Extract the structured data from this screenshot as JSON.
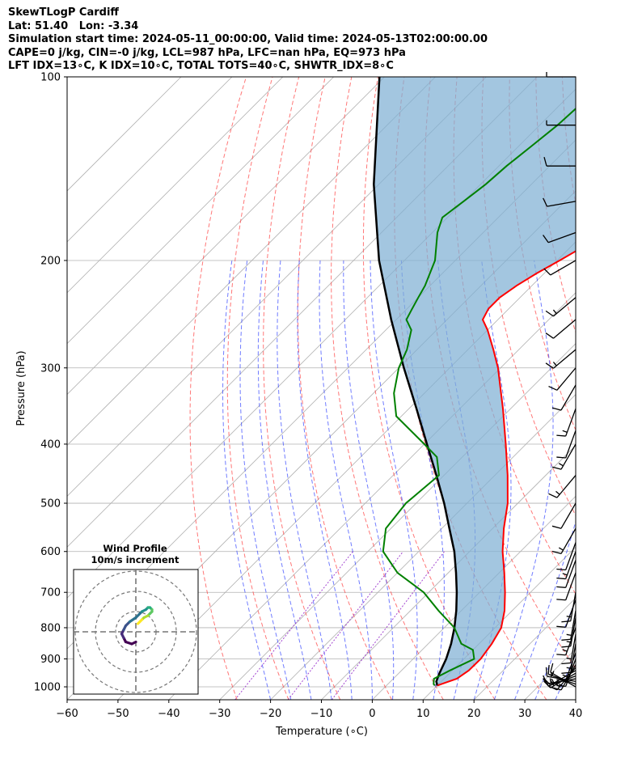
{
  "title": {
    "line1": "SkewTLogP Cardiff",
    "line2": "Lat: 51.40   Lon: -3.34",
    "line3": "Simulation start time: 2024-05-11_00:00:00, Valid time: 2024-05-13T02:00:00.00",
    "line4": "CAPE=0 j/kg, CIN=-0 j/kg, LCL=987 hPa, LFC=nan hPa, EQ=973 hPa",
    "line5": "LFT IDX=13$^\\circ$C, K IDX=10$^\\circ$C, TOTAL TOTS=40$^\\circ$C, SHWTR_IDX=8$^\\circ$C",
    "line5_display": "LFT IDX=13∘C, K IDX=10∘C, TOTAL TOTS=40∘C, SHWTR_IDX=8∘C"
  },
  "chart_data": {
    "type": "line",
    "subtype": "skew-t log-p",
    "xlabel": "Temperature (∘C)",
    "ylabel": "Pressure (hPa)",
    "xlim": [
      -60,
      40
    ],
    "ylim": [
      1050,
      100
    ],
    "y_scale": "log",
    "x_ticks": [
      "−60",
      "−50",
      "−40",
      "−30",
      "−20",
      "−10",
      "0",
      "10",
      "20",
      "30",
      "40"
    ],
    "y_ticks": [
      "100",
      "200",
      "300",
      "400",
      "500",
      "600",
      "700",
      "800",
      "900",
      "1000"
    ],
    "grid": true,
    "colors": {
      "temperature": "#ff0000",
      "dewpoint": "#008000",
      "parcel": "#000000",
      "cape_fill": "#7fb0d4",
      "dry_adiabats": "#ff4a4a",
      "moist_adiabats": "#3344ff",
      "mixing_ratio": "#9933cc",
      "isotherms": "#b0b0b0",
      "barbs": "#000000"
    },
    "series": [
      {
        "key": "temperature",
        "pressure": [
          995,
          990,
          970,
          940,
          900,
          850,
          800,
          750,
          700,
          650,
          600,
          550,
          500,
          450,
          400,
          350,
          300,
          280,
          260,
          250,
          240,
          230,
          220,
          210,
          200,
          180,
          160,
          150,
          140,
          130,
          120,
          110,
          100
        ],
        "values": [
          10,
          10.5,
          12.5,
          13.2,
          13.3,
          12.5,
          11.2,
          8.5,
          5.0,
          1.0,
          -3.5,
          -7.8,
          -12.0,
          -17.5,
          -24.0,
          -31.5,
          -40.5,
          -45.0,
          -50.0,
          -53.0,
          -54.0,
          -54.0,
          -53.0,
          -51.5,
          -49.5,
          -45.5,
          -41.5,
          -39.5,
          -37.5,
          -35.5,
          -33.5,
          -31.5,
          -30.5
        ]
      },
      {
        "key": "dewpoint",
        "pressure": [
          995,
          990,
          970,
          940,
          900,
          870,
          850,
          800,
          750,
          700,
          650,
          600,
          550,
          500,
          450,
          420,
          400,
          360,
          330,
          300,
          280,
          260,
          250,
          240,
          230,
          220,
          200,
          180,
          170,
          160,
          150,
          140,
          130,
          120,
          110,
          100
        ],
        "values": [
          9.5,
          9.0,
          8.0,
          9.5,
          12.0,
          10.0,
          6.5,
          2.0,
          -4.5,
          -11.0,
          -20.0,
          -27.0,
          -31.0,
          -32.0,
          -31.0,
          -35.0,
          -40.0,
          -51.0,
          -56.0,
          -60.0,
          -62.0,
          -65.0,
          -68.0,
          -69.0,
          -70.0,
          -71.0,
          -74.0,
          -79.0,
          -81.0,
          -80.0,
          -79.0,
          -78.5,
          -77.5,
          -76.5,
          -76.0,
          -75.0
        ]
      },
      {
        "key": "parcel",
        "pressure": [
          995,
          980,
          950,
          900,
          850,
          800,
          750,
          700,
          650,
          600,
          550,
          500,
          450,
          400,
          350,
          300,
          250,
          200,
          150,
          100
        ],
        "values": [
          10.0,
          9.0,
          8.0,
          6.5,
          4.5,
          2.0,
          -1.0,
          -4.5,
          -8.5,
          -13.0,
          -18.5,
          -24.5,
          -31.5,
          -39.5,
          -48.5,
          -59.0,
          -71.0,
          -85.0,
          -101.0,
          -121.0
        ]
      }
    ],
    "cape_shading": "between temperature and parcel profiles",
    "wind_barbs": {
      "pressure": [
        1000,
        990,
        980,
        970,
        960,
        950,
        940,
        930,
        920,
        900,
        880,
        850,
        820,
        800,
        770,
        750,
        720,
        700,
        650,
        620,
        600,
        580,
        550,
        500,
        450,
        400,
        380,
        350,
        320,
        300,
        280,
        250,
        230,
        200,
        180,
        160,
        140,
        120,
        100
      ],
      "speed_kt": [
        10,
        15,
        15,
        15,
        15,
        15,
        15,
        15,
        15,
        15,
        15,
        15,
        15,
        15,
        15,
        15,
        10,
        15,
        10,
        10,
        15,
        10,
        15,
        10,
        15,
        15,
        10,
        15,
        10,
        10,
        15,
        10,
        15,
        10,
        10,
        10,
        10,
        5,
        5
      ],
      "direction_deg": [
        300,
        290,
        280,
        260,
        250,
        240,
        240,
        220,
        210,
        200,
        200,
        190,
        190,
        200,
        190,
        190,
        200,
        190,
        200,
        200,
        200,
        200,
        210,
        210,
        220,
        210,
        200,
        200,
        210,
        220,
        230,
        230,
        230,
        240,
        250,
        260,
        270,
        270,
        270
      ]
    },
    "hodograph": {
      "title": "Wind Profile",
      "subtitle": "10m/s increment",
      "u": [
        0,
        -2,
        -5,
        -6,
        -7,
        -6,
        -5,
        -3,
        0,
        2,
        3,
        5,
        6,
        7,
        8,
        8,
        7,
        6,
        4,
        3,
        2,
        1
      ],
      "v": [
        -5,
        -6,
        -5,
        -3,
        -1,
        1,
        3,
        5,
        7,
        9,
        10,
        11,
        12,
        12,
        11,
        10,
        9,
        8,
        7,
        6,
        5,
        4
      ]
    }
  }
}
